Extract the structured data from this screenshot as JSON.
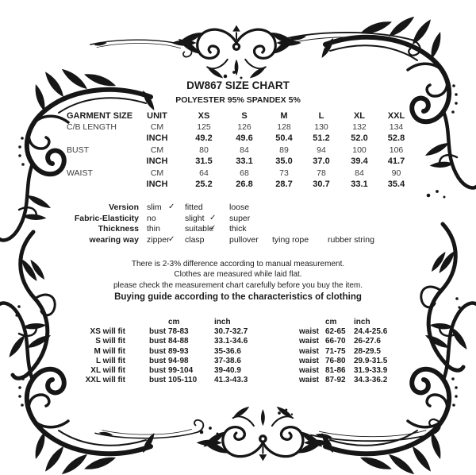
{
  "page": {
    "title": "DW867 SIZE CHART",
    "subtitle": "POLYESTER 95% SPANDEX 5%"
  },
  "colors": {
    "ink": "#1c1c1c",
    "background": "#ffffff",
    "ornament": "#161616"
  },
  "size_table": {
    "rows": [
      [
        "GARMENT SIZE",
        "UNIT",
        "XS",
        "S",
        "M",
        "L",
        "XL",
        "XXL"
      ],
      [
        "C/B LENGTH",
        "CM",
        "125",
        "126",
        "128",
        "130",
        "132",
        "134"
      ],
      [
        "",
        "INCH",
        "49.2",
        "49.6",
        "50.4",
        "51.2",
        "52.0",
        "52.8"
      ],
      [
        "BUST",
        "CM",
        "80",
        "84",
        "89",
        "94",
        "100",
        "106"
      ],
      [
        "",
        "INCH",
        "31.5",
        "33.1",
        "35.0",
        "37.0",
        "39.4",
        "41.7"
      ],
      [
        "WAIST",
        "CM",
        "64",
        "68",
        "73",
        "78",
        "84",
        "90"
      ],
      [
        "",
        "INCH",
        "25.2",
        "26.8",
        "28.7",
        "30.7",
        "33.1",
        "35.4"
      ]
    ]
  },
  "features": {
    "rows": [
      {
        "label": "Version",
        "c1": "slim",
        "k1": "✓",
        "c2": "fitted",
        "k2": "",
        "c3": "loose",
        "c4": "",
        "c5": ""
      },
      {
        "label": "Fabric-Elasticity",
        "c1": "no",
        "k1": "",
        "c2": "slight",
        "k2": "✓",
        "c3": "super",
        "c4": "",
        "c5": ""
      },
      {
        "label": "Thickness",
        "c1": "thin",
        "k1": "",
        "c2": "suitable",
        "k2": "✓",
        "c3": "thick",
        "c4": "",
        "c5": ""
      },
      {
        "label": "wearing way",
        "c1": "zipper",
        "k1": "✓",
        "c2": "clasp",
        "k2": "",
        "c3": "pullover",
        "c4": "tying rope",
        "c5": "rubber string"
      }
    ]
  },
  "notes": {
    "line1": "There is 2-3% difference according to manual measurement.",
    "line2": "Clothes are measured while laid flat.",
    "line3": "please check the measurement chart carefully before you buy the item.",
    "heading": "Buying guide according to the characteristics of clothing"
  },
  "fit_guide": {
    "rows": [
      [
        "",
        "",
        "cm",
        "inch",
        "",
        "cm",
        "inch"
      ],
      [
        "XS will fit",
        "bust",
        "78-83",
        "30.7-32.7",
        "waist",
        "62-65",
        "24.4-25.6"
      ],
      [
        "S will fit",
        "bust",
        "84-88",
        "33.1-34.6",
        "waist",
        "66-70",
        "26-27.6"
      ],
      [
        "M will fit",
        "bust",
        "89-93",
        "35-36.6",
        "waist",
        "71-75",
        "28-29.5"
      ],
      [
        "L will fit",
        "bust",
        "94-98",
        "37-38.6",
        "waist",
        "76-80",
        "29.9-31.5"
      ],
      [
        "XL will fit",
        "bust",
        "99-104",
        "39-40.9",
        "waist",
        "81-86",
        "31.9-33.9"
      ],
      [
        "XXL will fit",
        "bust",
        "105-110",
        "41.3-43.3",
        "waist",
        "87-92",
        "34.3-36.2"
      ]
    ]
  }
}
